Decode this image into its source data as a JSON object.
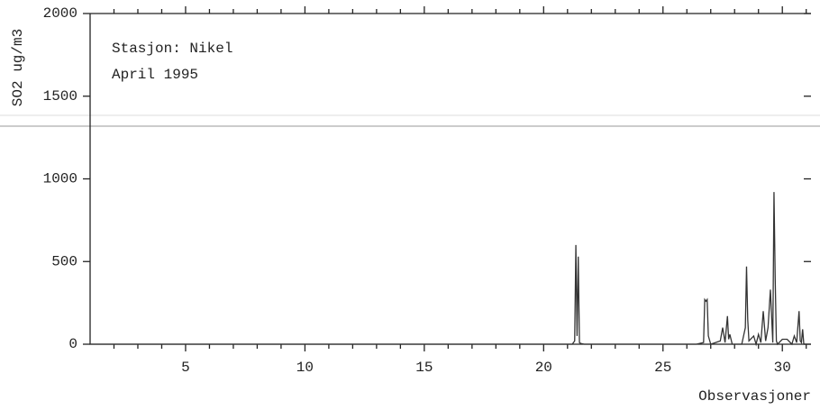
{
  "chart_data": {
    "type": "line",
    "annotations": [
      "Stasjon: Nikel",
      "April 1995"
    ],
    "y_label": "SO2 ug/m3",
    "x_label": "Observasjoner",
    "xlim": [
      1,
      31.2
    ],
    "xticks": [
      5,
      10,
      15,
      20,
      25,
      30
    ],
    "xminorticks": [
      2,
      3,
      4,
      6,
      7,
      8,
      9,
      11,
      12,
      13,
      14,
      16,
      17,
      18,
      19,
      21,
      22,
      23,
      24,
      26,
      27,
      28,
      29,
      31
    ],
    "ylim": [
      0,
      2000
    ],
    "yticks": [
      0,
      500,
      1000,
      1500,
      2000
    ],
    "grid": false,
    "series": [
      {
        "color": "#333333",
        "x": [
          1,
          21.2,
          21.3,
          21.35,
          21.4,
          21.45,
          21.5,
          21.55,
          21.7,
          26.4,
          26.7,
          26.75,
          26.8,
          26.85,
          26.9,
          27.0,
          27.4,
          27.5,
          27.6,
          27.7,
          27.75,
          27.8,
          27.9,
          28.3,
          28.45,
          28.5,
          28.55,
          28.6,
          28.8,
          28.9,
          29.0,
          29.1,
          29.2,
          29.3,
          29.4,
          29.5,
          29.6,
          29.65,
          29.7,
          29.75,
          29.8,
          30.0,
          30.2,
          30.4,
          30.5,
          30.6,
          30.7,
          30.75,
          30.8,
          30.85,
          30.9,
          31.0
        ],
        "values": [
          0,
          0,
          20,
          600,
          50,
          530,
          10,
          5,
          0,
          0,
          10,
          270,
          260,
          270,
          50,
          0,
          20,
          100,
          10,
          170,
          30,
          60,
          0,
          0,
          100,
          470,
          150,
          20,
          50,
          0,
          60,
          10,
          200,
          20,
          100,
          330,
          10,
          920,
          400,
          20,
          0,
          30,
          30,
          0,
          50,
          10,
          200,
          20,
          10,
          90,
          0,
          0
        ]
      }
    ]
  }
}
